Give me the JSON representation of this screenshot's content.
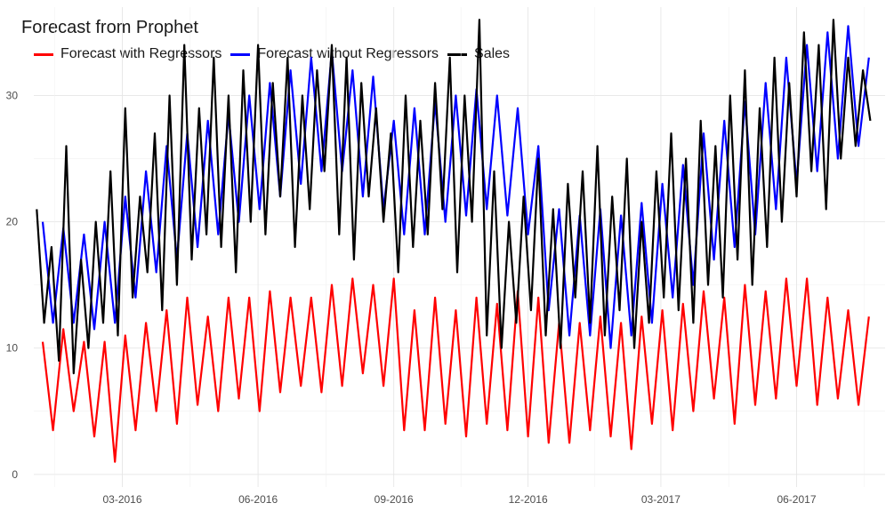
{
  "chart_data": {
    "type": "line",
    "title": "Forecast from Prophet",
    "xlabel": "",
    "ylabel": "",
    "x_range": [
      "2016-01-01",
      "2017-07-31"
    ],
    "ylim": [
      -1,
      37
    ],
    "grid": true,
    "legend_position": "top-left",
    "x_ticks": [
      {
        "date": "2016-03-01",
        "label": "03-2016"
      },
      {
        "date": "2016-06-01",
        "label": "06-2016"
      },
      {
        "date": "2016-09-01",
        "label": "09-2016"
      },
      {
        "date": "2016-12-01",
        "label": "12-2016"
      },
      {
        "date": "2017-03-01",
        "label": "03-2017"
      },
      {
        "date": "2017-06-01",
        "label": "06-2017"
      }
    ],
    "y_ticks": [
      0,
      10,
      20,
      30
    ],
    "series": [
      {
        "name": "Forecast with Regressors",
        "color": "#ff0000",
        "x": [
          "2016-01-07",
          "2016-01-14",
          "2016-01-21",
          "2016-01-28",
          "2016-02-04",
          "2016-02-11",
          "2016-02-18",
          "2016-02-25",
          "2016-03-03",
          "2016-03-10",
          "2016-03-17",
          "2016-03-24",
          "2016-03-31",
          "2016-04-07",
          "2016-04-14",
          "2016-04-21",
          "2016-04-28",
          "2016-05-05",
          "2016-05-12",
          "2016-05-19",
          "2016-05-26",
          "2016-06-02",
          "2016-06-09",
          "2016-06-16",
          "2016-06-23",
          "2016-06-30",
          "2016-07-07",
          "2016-07-14",
          "2016-07-21",
          "2016-07-28",
          "2016-08-04",
          "2016-08-11",
          "2016-08-18",
          "2016-08-25",
          "2016-09-01",
          "2016-09-08",
          "2016-09-15",
          "2016-09-22",
          "2016-09-29",
          "2016-10-06",
          "2016-10-13",
          "2016-10-20",
          "2016-10-27",
          "2016-11-03",
          "2016-11-10",
          "2016-11-17",
          "2016-11-24",
          "2016-12-01",
          "2016-12-08",
          "2016-12-15",
          "2016-12-22",
          "2016-12-29",
          "2017-01-05",
          "2017-01-12",
          "2017-01-19",
          "2017-01-26",
          "2017-02-02",
          "2017-02-09",
          "2017-02-16",
          "2017-02-23",
          "2017-03-02",
          "2017-03-09",
          "2017-03-16",
          "2017-03-23",
          "2017-03-30",
          "2017-04-06",
          "2017-04-13",
          "2017-04-20",
          "2017-04-27",
          "2017-05-04",
          "2017-05-11",
          "2017-05-18",
          "2017-05-25",
          "2017-06-01",
          "2017-06-08",
          "2017-06-15",
          "2017-06-22",
          "2017-06-29",
          "2017-07-06",
          "2017-07-13",
          "2017-07-20"
        ],
        "y": [
          10.5,
          3.5,
          11.5,
          5.0,
          10.5,
          3.0,
          10.5,
          1.0,
          11.0,
          3.5,
          12.0,
          5.0,
          13.0,
          4.0,
          14.0,
          5.5,
          12.5,
          5.0,
          14.0,
          6.0,
          14.0,
          5.0,
          14.5,
          6.5,
          14.0,
          7.0,
          14.0,
          6.5,
          15.0,
          7.0,
          15.5,
          8.0,
          15.0,
          7.0,
          15.5,
          3.5,
          13.0,
          3.5,
          14.0,
          4.0,
          13.0,
          3.0,
          14.0,
          4.0,
          13.5,
          3.5,
          14.5,
          3.0,
          14.0,
          2.5,
          12.0,
          2.5,
          12.0,
          3.5,
          12.5,
          3.0,
          12.0,
          2.0,
          12.5,
          4.0,
          13.0,
          3.5,
          13.5,
          5.0,
          14.5,
          6.0,
          14.0,
          4.0,
          15.0,
          5.5,
          14.5,
          6.0,
          15.5,
          7.0,
          15.5,
          5.5,
          14.0,
          6.0,
          13.0,
          5.5,
          12.5
        ]
      },
      {
        "name": "Forecast without Regressors",
        "color": "#0000ff",
        "x": [
          "2016-01-07",
          "2016-01-14",
          "2016-01-21",
          "2016-01-28",
          "2016-02-04",
          "2016-02-11",
          "2016-02-18",
          "2016-02-25",
          "2016-03-03",
          "2016-03-10",
          "2016-03-17",
          "2016-03-24",
          "2016-03-31",
          "2016-04-07",
          "2016-04-14",
          "2016-04-21",
          "2016-04-28",
          "2016-05-05",
          "2016-05-12",
          "2016-05-19",
          "2016-05-26",
          "2016-06-02",
          "2016-06-09",
          "2016-06-16",
          "2016-06-23",
          "2016-06-30",
          "2016-07-07",
          "2016-07-14",
          "2016-07-21",
          "2016-07-28",
          "2016-08-04",
          "2016-08-11",
          "2016-08-18",
          "2016-08-25",
          "2016-09-01",
          "2016-09-08",
          "2016-09-15",
          "2016-09-22",
          "2016-09-29",
          "2016-10-06",
          "2016-10-13",
          "2016-10-20",
          "2016-10-27",
          "2016-11-03",
          "2016-11-10",
          "2016-11-17",
          "2016-11-24",
          "2016-12-01",
          "2016-12-08",
          "2016-12-15",
          "2016-12-22",
          "2016-12-29",
          "2017-01-05",
          "2017-01-12",
          "2017-01-19",
          "2017-01-26",
          "2017-02-02",
          "2017-02-09",
          "2017-02-16",
          "2017-02-23",
          "2017-03-02",
          "2017-03-09",
          "2017-03-16",
          "2017-03-23",
          "2017-03-30",
          "2017-04-06",
          "2017-04-13",
          "2017-04-20",
          "2017-04-27",
          "2017-05-04",
          "2017-05-11",
          "2017-05-18",
          "2017-05-25",
          "2017-06-01",
          "2017-06-08",
          "2017-06-15",
          "2017-06-22",
          "2017-06-29",
          "2017-07-06",
          "2017-07-13",
          "2017-07-20"
        ],
        "y": [
          20.0,
          12.0,
          19.5,
          12.0,
          19.0,
          11.5,
          20.0,
          12.0,
          22.0,
          14.0,
          24.0,
          16.0,
          26.0,
          17.0,
          27.0,
          18.0,
          28.0,
          19.0,
          28.5,
          20.0,
          30.0,
          21.0,
          31.0,
          22.0,
          32.0,
          23.0,
          33.0,
          24.0,
          33.5,
          24.0,
          32.0,
          22.0,
          31.5,
          21.0,
          28.0,
          19.0,
          29.0,
          19.0,
          29.5,
          20.0,
          30.0,
          20.5,
          30.5,
          21.0,
          30.0,
          20.5,
          29.0,
          19.0,
          26.0,
          13.0,
          21.0,
          11.0,
          20.5,
          11.0,
          21.0,
          10.0,
          20.5,
          11.0,
          21.5,
          12.0,
          23.0,
          14.0,
          24.5,
          15.0,
          27.0,
          17.0,
          28.0,
          18.0,
          29.5,
          19.0,
          31.0,
          21.0,
          33.0,
          23.0,
          34.0,
          24.0,
          35.0,
          25.0,
          35.5,
          26.0,
          33.0
        ]
      },
      {
        "name": "Sales",
        "color": "#000000",
        "x": [
          "2016-01-03",
          "2016-01-08",
          "2016-01-13",
          "2016-01-18",
          "2016-01-23",
          "2016-01-28",
          "2016-02-02",
          "2016-02-07",
          "2016-02-12",
          "2016-02-17",
          "2016-02-22",
          "2016-02-27",
          "2016-03-03",
          "2016-03-08",
          "2016-03-13",
          "2016-03-18",
          "2016-03-23",
          "2016-03-28",
          "2016-04-02",
          "2016-04-07",
          "2016-04-12",
          "2016-04-17",
          "2016-04-22",
          "2016-04-27",
          "2016-05-02",
          "2016-05-07",
          "2016-05-12",
          "2016-05-17",
          "2016-05-22",
          "2016-05-27",
          "2016-06-01",
          "2016-06-06",
          "2016-06-11",
          "2016-06-16",
          "2016-06-21",
          "2016-06-26",
          "2016-07-01",
          "2016-07-06",
          "2016-07-11",
          "2016-07-16",
          "2016-07-21",
          "2016-07-26",
          "2016-07-31",
          "2016-08-05",
          "2016-08-10",
          "2016-08-15",
          "2016-08-20",
          "2016-08-25",
          "2016-08-30",
          "2016-09-04",
          "2016-09-09",
          "2016-09-14",
          "2016-09-19",
          "2016-09-24",
          "2016-09-29",
          "2016-10-04",
          "2016-10-09",
          "2016-10-14",
          "2016-10-19",
          "2016-10-24",
          "2016-10-29",
          "2016-11-03",
          "2016-11-08",
          "2016-11-13",
          "2016-11-18",
          "2016-11-23",
          "2016-11-28",
          "2016-12-03",
          "2016-12-08",
          "2016-12-13",
          "2016-12-18",
          "2016-12-23",
          "2016-12-28",
          "2017-01-02",
          "2017-01-07",
          "2017-01-12",
          "2017-01-17",
          "2017-01-22",
          "2017-01-27",
          "2017-02-01",
          "2017-02-06",
          "2017-02-11",
          "2017-02-16",
          "2017-02-21",
          "2017-02-26",
          "2017-03-03",
          "2017-03-08",
          "2017-03-13",
          "2017-03-18",
          "2017-03-23",
          "2017-03-28",
          "2017-04-02",
          "2017-04-07",
          "2017-04-12",
          "2017-04-17",
          "2017-04-22",
          "2017-04-27",
          "2017-05-02",
          "2017-05-07",
          "2017-05-12",
          "2017-05-17",
          "2017-05-22",
          "2017-05-27",
          "2017-06-01",
          "2017-06-06",
          "2017-06-11",
          "2017-06-16",
          "2017-06-21",
          "2017-06-26",
          "2017-07-01",
          "2017-07-06",
          "2017-07-11",
          "2017-07-16",
          "2017-07-21"
        ],
        "y": [
          21,
          12,
          18,
          9,
          26,
          8,
          17,
          10,
          20,
          12,
          24,
          11,
          29,
          14,
          22,
          16,
          27,
          13,
          30,
          15,
          34,
          17,
          29,
          19,
          33,
          18,
          30,
          16,
          32,
          20,
          34,
          19,
          31,
          22,
          33,
          18,
          30,
          21,
          32,
          24,
          34,
          19,
          33,
          17,
          31,
          22,
          29,
          20,
          27,
          16,
          30,
          18,
          28,
          19,
          31,
          21,
          33,
          16,
          30,
          20,
          36,
          11,
          24,
          10,
          20,
          12,
          22,
          13,
          25,
          11,
          21,
          10,
          23,
          14,
          24,
          12,
          26,
          11,
          22,
          13,
          25,
          10,
          20,
          12,
          24,
          14,
          27,
          13,
          25,
          12,
          28,
          15,
          26,
          14,
          30,
          17,
          32,
          15,
          29,
          18,
          33,
          20,
          31,
          22,
          35,
          24,
          34,
          21,
          36,
          25,
          33,
          26,
          32,
          28
        ]
      }
    ]
  }
}
